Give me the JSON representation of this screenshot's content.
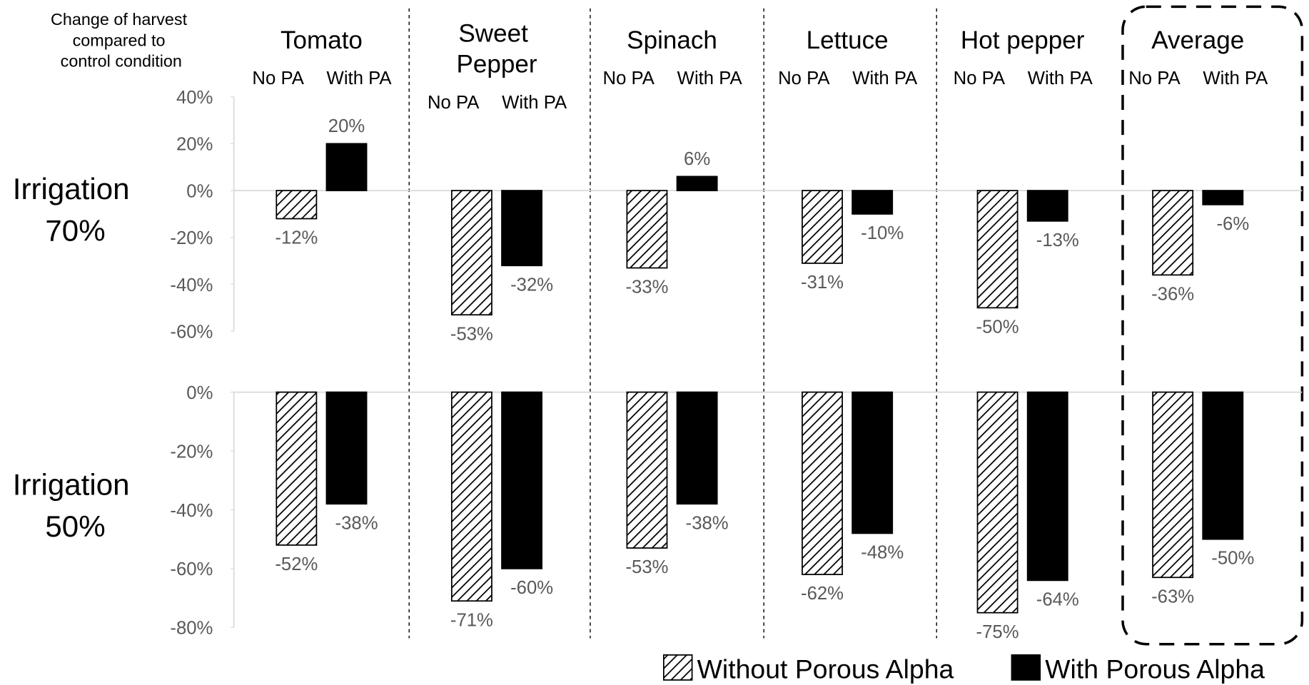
{
  "ylabel": "Change of harvest compared to control condition",
  "group_labels": [
    "No PA",
    "With PA"
  ],
  "chart_data": [
    {
      "type": "bar",
      "title": "Irrigation 70%",
      "categories": [
        "Tomato",
        "Sweet Pepper",
        "Spinach",
        "Lettuce",
        "Hot pepper",
        "Average"
      ],
      "series": [
        {
          "name": "Without Porous Alpha",
          "color": "#000000",
          "hatch": true,
          "values": [
            -12,
            -53,
            -33,
            -31,
            -50,
            -36
          ],
          "value_labels": [
            "-12%",
            "-53%",
            "-33%",
            "-31%",
            "-50%",
            "-36%"
          ]
        },
        {
          "name": "With Porous Alpha",
          "color": "#000000",
          "hatch": false,
          "values": [
            20,
            -32,
            6,
            -10,
            -13,
            -6
          ],
          "value_labels": [
            "20%",
            "-32%",
            "6%",
            "-10%",
            "-13%",
            "-6%"
          ]
        }
      ],
      "ylim": [
        -60,
        40
      ],
      "yticks": [
        {
          "value": 40,
          "label": "40%"
        },
        {
          "value": 20,
          "label": "20%"
        },
        {
          "value": 0,
          "label": "0%"
        },
        {
          "value": -20,
          "label": "-20%"
        },
        {
          "value": -40,
          "label": "-40%"
        },
        {
          "value": -60,
          "label": "-60%"
        }
      ]
    },
    {
      "type": "bar",
      "title": "Irrigation 50%",
      "categories": [
        "Tomato",
        "Sweet Pepper",
        "Spinach",
        "Lettuce",
        "Hot pepper",
        "Average"
      ],
      "series": [
        {
          "name": "Without Porous Alpha",
          "color": "#000000",
          "hatch": true,
          "values": [
            -52,
            -71,
            -53,
            -62,
            -75,
            -63
          ],
          "value_labels": [
            "-52%",
            "-71%",
            "-53%",
            "-62%",
            "-75%",
            "-63%"
          ]
        },
        {
          "name": "With Porous Alpha",
          "color": "#000000",
          "hatch": false,
          "values": [
            -38,
            -60,
            -38,
            -48,
            -64,
            -50
          ],
          "value_labels": [
            "-38%",
            "-60%",
            "-38%",
            "-48%",
            "-64%",
            "-50%"
          ]
        }
      ],
      "ylim": [
        -80,
        0
      ],
      "yticks": [
        {
          "value": 0,
          "label": "0%"
        },
        {
          "value": -20,
          "label": "-20%"
        },
        {
          "value": -40,
          "label": "-40%"
        },
        {
          "value": -60,
          "label": "-60%"
        },
        {
          "value": -80,
          "label": "-80%"
        }
      ]
    }
  ]
}
